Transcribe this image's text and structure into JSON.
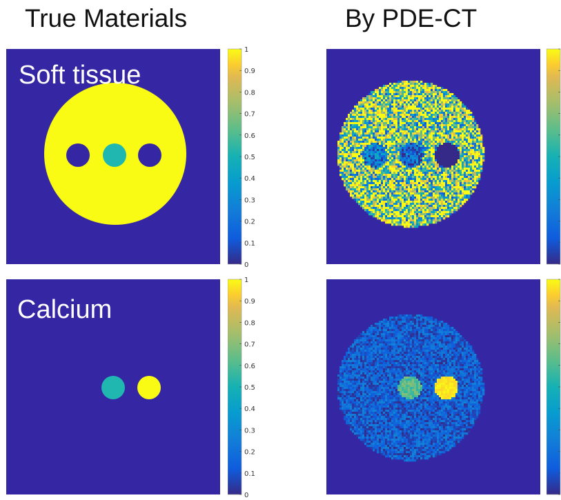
{
  "titles": {
    "left": "True Materials",
    "right": "By PDE-CT"
  },
  "row_labels": {
    "top": "Soft tissue",
    "bottom": "Calcium"
  },
  "colorbar": {
    "ticks": [
      "0",
      "0.1",
      "0.2",
      "0.3",
      "0.4",
      "0.5",
      "0.6",
      "0.7",
      "0.8",
      "0.9",
      "1"
    ],
    "range": [
      0,
      1
    ],
    "colormap": "parula"
  },
  "colors": {
    "background": "#3526a3",
    "high": "#f9fb14",
    "mid": "#21b7b1"
  },
  "panels": [
    {
      "id": "true-soft",
      "phantom_value": 1.0,
      "inserts": [
        0.0,
        0.5,
        0.0
      ],
      "noisy": false
    },
    {
      "id": "pde-soft",
      "phantom_value": 1.0,
      "inserts": [
        0.25,
        0.2,
        0.0
      ],
      "noisy": true
    },
    {
      "id": "true-calcium",
      "phantom_value": 0.0,
      "inserts": [
        0.0,
        0.5,
        1.0
      ],
      "noisy": false
    },
    {
      "id": "pde-calcium",
      "phantom_value": 0.12,
      "inserts": [
        0.0,
        0.65,
        1.0
      ],
      "noisy": true
    }
  ]
}
